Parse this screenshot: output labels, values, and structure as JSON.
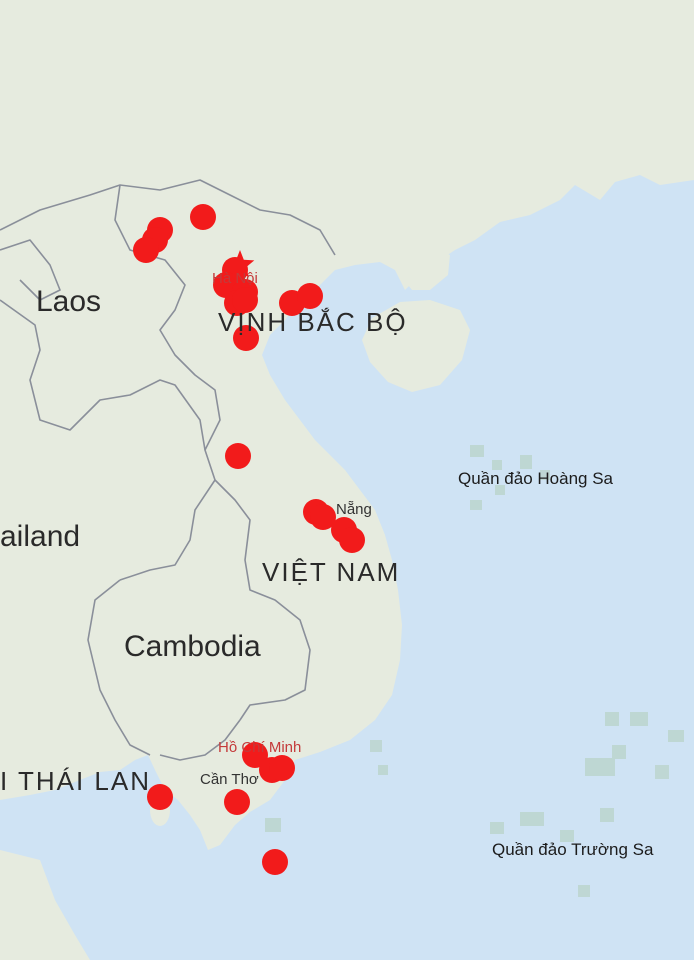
{
  "map": {
    "colors": {
      "water": "#cfe3f4",
      "land": "#e6ebdf",
      "border": "#8a8f9a",
      "marker": "#f21b1b",
      "capital_label": "#c43a3a"
    },
    "labels": {
      "laos": "Laos",
      "thailand": "ailand",
      "cambodia": "Cambodia",
      "vietnam": "VIỆT NAM",
      "gulf_tonkin": "VỊNH BẮC BỘ",
      "gulf_thailand": "I THÁI LAN",
      "paracel": "Quần đảo Hoàng Sa",
      "spratly": "Quần đảo Trường Sa",
      "hanoi": "Hà Nội",
      "danang": "Nẵng",
      "hcmc": "Hồ Chí Minh",
      "cantho": "Cần Thơ"
    },
    "capital_marker": "star-icon",
    "marker_count": 28
  }
}
